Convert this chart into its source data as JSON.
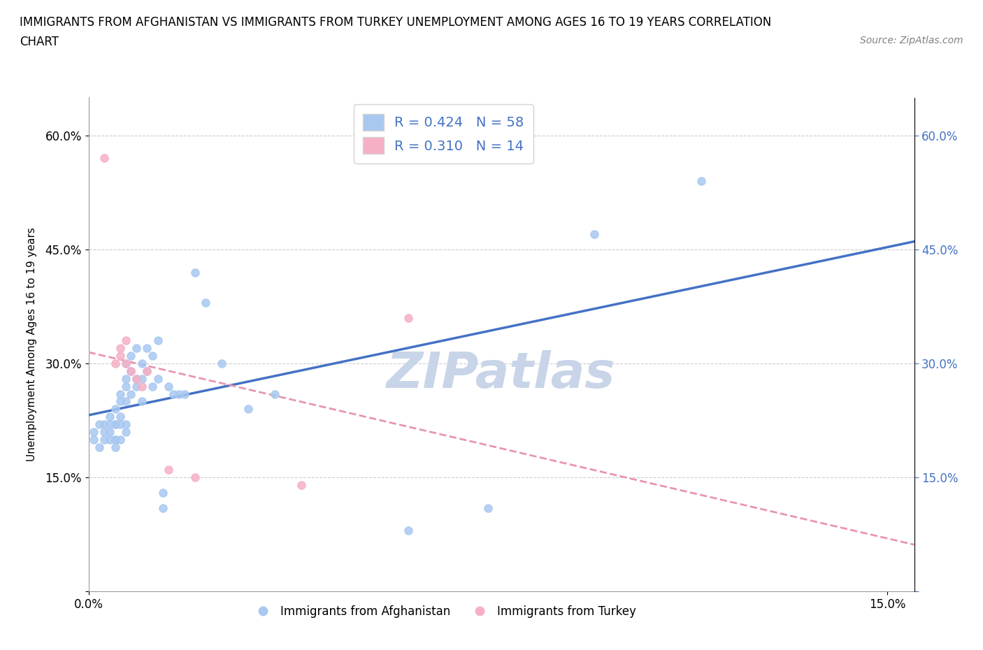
{
  "title_line1": "IMMIGRANTS FROM AFGHANISTAN VS IMMIGRANTS FROM TURKEY UNEMPLOYMENT AMONG AGES 16 TO 19 YEARS CORRELATION",
  "title_line2": "CHART",
  "source": "Source: ZipAtlas.com",
  "ylabel_label": "Unemployment Among Ages 16 to 19 years",
  "xlim": [
    0.0,
    0.155
  ],
  "ylim": [
    0.0,
    0.65
  ],
  "ytick_vals": [
    0.0,
    0.15,
    0.3,
    0.45,
    0.6
  ],
  "ytick_labels": [
    "",
    "15.0%",
    "30.0%",
    "45.0%",
    "60.0%"
  ],
  "xtick_vals": [
    0.0,
    0.15
  ],
  "xtick_labels": [
    "0.0%",
    "15.0%"
  ],
  "legend_r1": "R = 0.424   N = 58",
  "legend_r2": "R = 0.310   N = 14",
  "color_blue": "#A8C8F0",
  "color_pink": "#F5B0C5",
  "line_color_blue": "#4472C4",
  "line_color_pink": "#E896B0",
  "watermark": "ZIPatlas",
  "watermark_color": "#C8D4E8",
  "afghanistan_x": [
    0.001,
    0.001,
    0.002,
    0.002,
    0.003,
    0.003,
    0.003,
    0.004,
    0.004,
    0.004,
    0.004,
    0.005,
    0.005,
    0.005,
    0.005,
    0.005,
    0.005,
    0.006,
    0.006,
    0.006,
    0.006,
    0.006,
    0.007,
    0.007,
    0.007,
    0.007,
    0.007,
    0.007,
    0.008,
    0.008,
    0.008,
    0.009,
    0.009,
    0.009,
    0.01,
    0.01,
    0.01,
    0.011,
    0.011,
    0.012,
    0.012,
    0.013,
    0.013,
    0.014,
    0.014,
    0.015,
    0.016,
    0.017,
    0.018,
    0.02,
    0.022,
    0.025,
    0.03,
    0.035,
    0.06,
    0.075,
    0.095,
    0.115
  ],
  "afghanistan_y": [
    0.2,
    0.21,
    0.19,
    0.22,
    0.21,
    0.22,
    0.2,
    0.23,
    0.21,
    0.2,
    0.22,
    0.22,
    0.24,
    0.2,
    0.22,
    0.19,
    0.2,
    0.25,
    0.23,
    0.26,
    0.22,
    0.2,
    0.28,
    0.3,
    0.27,
    0.25,
    0.22,
    0.21,
    0.31,
    0.29,
    0.26,
    0.32,
    0.28,
    0.27,
    0.3,
    0.28,
    0.25,
    0.32,
    0.29,
    0.31,
    0.27,
    0.33,
    0.28,
    0.13,
    0.11,
    0.27,
    0.26,
    0.26,
    0.26,
    0.42,
    0.38,
    0.3,
    0.24,
    0.26,
    0.08,
    0.11,
    0.47,
    0.54
  ],
  "turkey_x": [
    0.003,
    0.005,
    0.006,
    0.006,
    0.007,
    0.007,
    0.008,
    0.009,
    0.01,
    0.011,
    0.015,
    0.02,
    0.04,
    0.06
  ],
  "turkey_y": [
    0.57,
    0.3,
    0.32,
    0.31,
    0.33,
    0.3,
    0.29,
    0.28,
    0.27,
    0.29,
    0.16,
    0.15,
    0.14,
    0.36
  ]
}
